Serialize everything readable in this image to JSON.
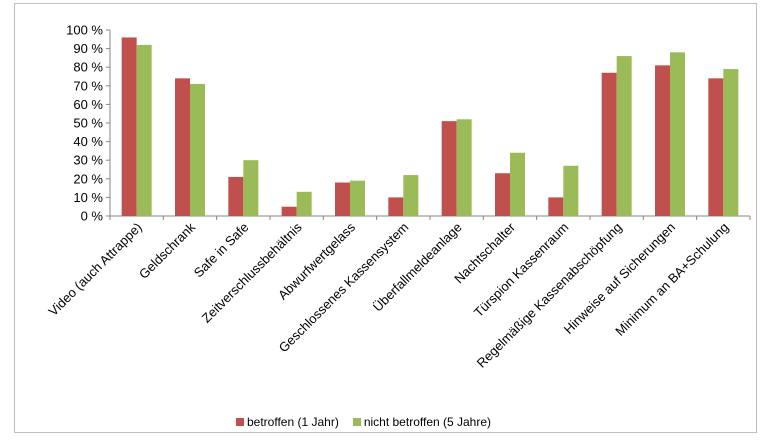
{
  "chart_data": {
    "type": "bar",
    "categories": [
      "Video (auch Attrappe)",
      "Geldschrank",
      "Safe in Safe",
      "Zeitverschlussbehältnis",
      "Abwurfwertgelass",
      "Geschlossenes Kassensystem",
      "Überfallmeldeanlage",
      "Nachtschalter",
      "Türspion Kassenraum",
      "Regelmäßige Kassenabschöpfung",
      "Hinweise auf Sicherungen",
      "Minimum an BA+Schulung"
    ],
    "series": [
      {
        "name": "betroffen (1 Jahr)",
        "color": "#C0504D",
        "values": [
          96,
          74,
          21,
          5,
          18,
          10,
          51,
          23,
          10,
          77,
          81,
          74
        ]
      },
      {
        "name": "nicht betroffen (5 Jahre)",
        "color": "#9BBB59",
        "values": [
          92,
          71,
          30,
          13,
          19,
          22,
          52,
          34,
          27,
          86,
          88,
          79
        ]
      }
    ],
    "yticks": [
      "0 %",
      "10 %",
      "20 %",
      "30 %",
      "40 %",
      "50 %",
      "60 %",
      "70 %",
      "80 %",
      "90 %",
      "100 %"
    ],
    "ylim": [
      0,
      100
    ],
    "grid": false,
    "legend_position": "bottom"
  }
}
